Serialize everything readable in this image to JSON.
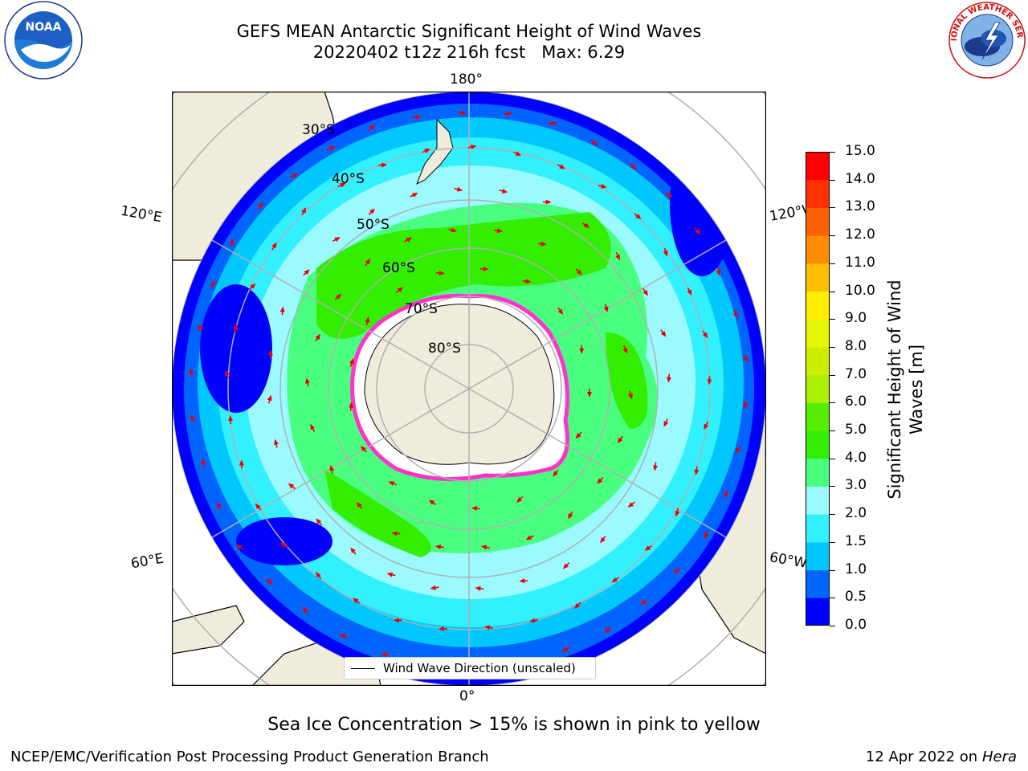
{
  "title": {
    "line1": "GEFS MEAN Antarctic Significant Height of Wind Waves",
    "line2": "20220402 t12z 216h fcst   Max: 6.29"
  },
  "map": {
    "projection": "south-polar-stereographic",
    "longitude_labels": {
      "top": "180°",
      "bottom": "0°",
      "upper_left": "120°E",
      "upper_right": "120°W",
      "lower_left": "60°E",
      "lower_right": "60°W"
    },
    "latitude_labels": [
      "30°S",
      "40°S",
      "50°S",
      "60°S",
      "70°S",
      "80°S"
    ],
    "colors": {
      "land": "#efecdc",
      "ice": "#ffffff",
      "ice_edge": [
        "#ff33cc",
        "#ff99ff",
        "#ffcc00"
      ],
      "arrows": "#ee0000",
      "graticule": "#b0b0b0"
    }
  },
  "legend": {
    "label": "Wind Wave Direction (unscaled)"
  },
  "colorbar": {
    "label_line1": "Significant Height of Wind",
    "label_line2": "Waves [m]",
    "ticks": [
      "0.0",
      "0.5",
      "1.0",
      "1.5",
      "2.0",
      "3.0",
      "4.0",
      "5.0",
      "6.0",
      "7.0",
      "8.0",
      "9.0",
      "10.0",
      "11.0",
      "12.0",
      "13.0",
      "14.0",
      "15.0"
    ],
    "colors": [
      "#0000ff",
      "#0064ff",
      "#00c8ff",
      "#33f0ff",
      "#9afaff",
      "#4aff80",
      "#33ee00",
      "#55ee00",
      "#aaee00",
      "#ccee00",
      "#e6f500",
      "#ffee00",
      "#ffbf00",
      "#ff8c00",
      "#ff6000",
      "#ff3000",
      "#ff0000"
    ]
  },
  "caption": "Sea Ice Concentration > 15% is shown in pink to yellow",
  "footer": {
    "left": "NCEP/EMC/Verification Post Processing Product Generation Branch",
    "right_prefix": "12 Apr 2022 on ",
    "right_host": "Hera"
  },
  "logos": {
    "noaa_text": "NOAA",
    "nws_text": "NATIONAL WEATHER SERVICE"
  }
}
